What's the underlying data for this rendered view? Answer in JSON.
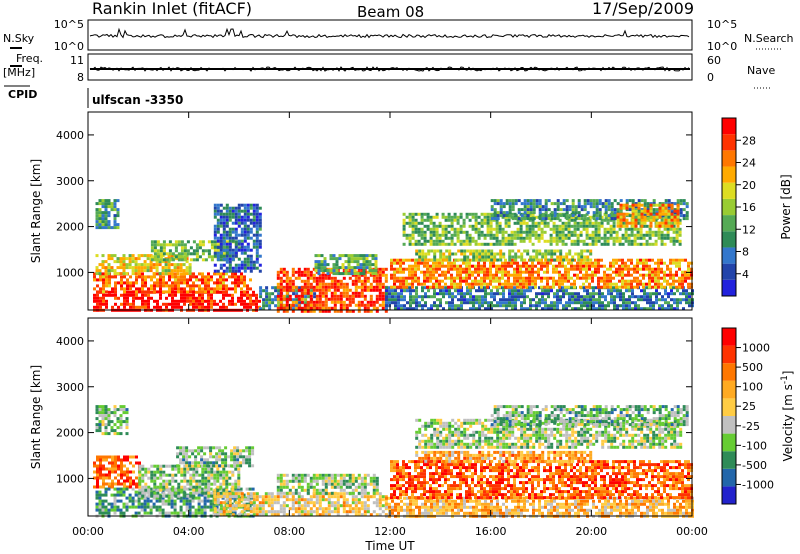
{
  "header": {
    "title": "Rankin Inlet (fitACF)",
    "beam": "Beam 08",
    "date": "17/Sep/2009"
  },
  "top_panels": {
    "nsky_label": "N.Sky",
    "nsky_ticks": [
      "10^5",
      "10^0"
    ],
    "nsearch_label": "N.Search",
    "nsearch_ticks": [
      "10^5",
      "10^0"
    ],
    "freq_label": "Freq.",
    "freq_unit": "[MHz]",
    "freq_ticks": [
      "11",
      "8"
    ],
    "nave_label": "Nave",
    "nave_ticks": [
      "60",
      "0"
    ],
    "cpid_label": "CPID",
    "cpid_value": "ulfscan -3350"
  },
  "chart_data": [
    {
      "type": "heatmap",
      "quantity": "power",
      "ylabel": "Slant Range [km]",
      "yticks": [
        1000,
        2000,
        3000,
        4000
      ],
      "ylim": [
        180,
        4500
      ],
      "xlim": [
        0,
        24
      ],
      "colorbar": {
        "label": "Power [dB]",
        "ticks": [
          "28",
          "24",
          "20",
          "16",
          "12",
          "8",
          "4"
        ],
        "colors": [
          "#2222dd",
          "#2244aa",
          "#3377cc",
          "#2e8b57",
          "#55aa55",
          "#99cc33",
          "#dddd22",
          "#ffaa00",
          "#ff7700",
          "#ff3300",
          "#ff0000"
        ]
      },
      "segments": [
        {
          "t0": 0.3,
          "t1": 1.2,
          "r0": 2000,
          "r1": 2600,
          "level": 0.35
        },
        {
          "t0": 0.2,
          "t1": 6.8,
          "r0": 180,
          "r1": 600,
          "level": 0.95
        },
        {
          "t0": 0.2,
          "t1": 6.5,
          "r0": 600,
          "r1": 1000,
          "level": 0.8
        },
        {
          "t0": 0.3,
          "t1": 4.0,
          "r0": 1000,
          "r1": 1400,
          "level": 0.6
        },
        {
          "t0": 2.5,
          "t1": 6.0,
          "r0": 1300,
          "r1": 1700,
          "level": 0.45
        },
        {
          "t0": 5.0,
          "t1": 6.8,
          "r0": 1000,
          "r1": 2500,
          "level": 0.2
        },
        {
          "t0": 6.8,
          "t1": 9.0,
          "r0": 180,
          "r1": 700,
          "level": 0.3
        },
        {
          "t0": 7.5,
          "t1": 11.8,
          "r0": 180,
          "r1": 1100,
          "level": 0.85
        },
        {
          "t0": 9.0,
          "t1": 11.5,
          "r0": 1000,
          "r1": 1400,
          "level": 0.4
        },
        {
          "t0": 11.8,
          "t1": 24.0,
          "r0": 180,
          "r1": 700,
          "level": 0.25
        },
        {
          "t0": 12.0,
          "t1": 24.0,
          "r0": 700,
          "r1": 1300,
          "level": 0.75
        },
        {
          "t0": 13.0,
          "t1": 20.0,
          "r0": 1300,
          "r1": 1500,
          "level": 0.5
        },
        {
          "t0": 12.5,
          "t1": 23.5,
          "r0": 1600,
          "r1": 2300,
          "level": 0.45
        },
        {
          "t0": 16.0,
          "t1": 23.8,
          "r0": 2200,
          "r1": 2600,
          "level": 0.3
        },
        {
          "t0": 21.0,
          "t1": 23.5,
          "r0": 2000,
          "r1": 2500,
          "level": 0.7
        }
      ]
    },
    {
      "type": "heatmap",
      "quantity": "velocity",
      "ylabel": "Slant Range [km]",
      "yticks": [
        1000,
        2000,
        3000,
        4000
      ],
      "ylim": [
        180,
        4500
      ],
      "xlim": [
        0,
        24
      ],
      "colorbar": {
        "label": "Velocity [m s^-1]",
        "ticks": [
          "1000",
          "500",
          "100",
          "25",
          "-25",
          "-100",
          "-500",
          "-1000"
        ],
        "colors": [
          "#2222cc",
          "#2266aa",
          "#2e8b57",
          "#66cc33",
          "#c0c0c0",
          "#ffcc44",
          "#ffaa22",
          "#ff7700",
          "#ff3300",
          "#ff0000"
        ]
      },
      "segments": [
        {
          "t0": 0.3,
          "t1": 1.5,
          "r0": 2000,
          "r1": 2600,
          "level": 0.35
        },
        {
          "t0": 0.2,
          "t1": 2.0,
          "r0": 800,
          "r1": 1500,
          "level": 0.8
        },
        {
          "t0": 0.3,
          "t1": 6.5,
          "r0": 180,
          "r1": 800,
          "level": 0.3
        },
        {
          "t0": 2.0,
          "t1": 6.0,
          "r0": 600,
          "r1": 1300,
          "level": 0.4
        },
        {
          "t0": 3.5,
          "t1": 6.5,
          "r0": 1300,
          "r1": 1700,
          "level": 0.35
        },
        {
          "t0": 5.0,
          "t1": 11.8,
          "r0": 180,
          "r1": 700,
          "level": 0.55
        },
        {
          "t0": 7.5,
          "t1": 11.5,
          "r0": 700,
          "r1": 1100,
          "level": 0.4
        },
        {
          "t0": 11.8,
          "t1": 24.0,
          "r0": 180,
          "r1": 600,
          "level": 0.6
        },
        {
          "t0": 12.0,
          "t1": 24.0,
          "r0": 600,
          "r1": 1400,
          "level": 0.8
        },
        {
          "t0": 13.0,
          "t1": 20.0,
          "r0": 1400,
          "r1": 1600,
          "level": 0.65
        },
        {
          "t0": 13.0,
          "t1": 23.5,
          "r0": 1700,
          "r1": 2300,
          "level": 0.4
        },
        {
          "t0": 16.0,
          "t1": 23.8,
          "r0": 2200,
          "r1": 2600,
          "level": 0.35
        }
      ]
    }
  ],
  "x_axis": {
    "ticks": [
      "00:00",
      "04:00",
      "08:00",
      "12:00",
      "16:00",
      "20:00",
      "00:00"
    ],
    "label": "Time UT"
  }
}
